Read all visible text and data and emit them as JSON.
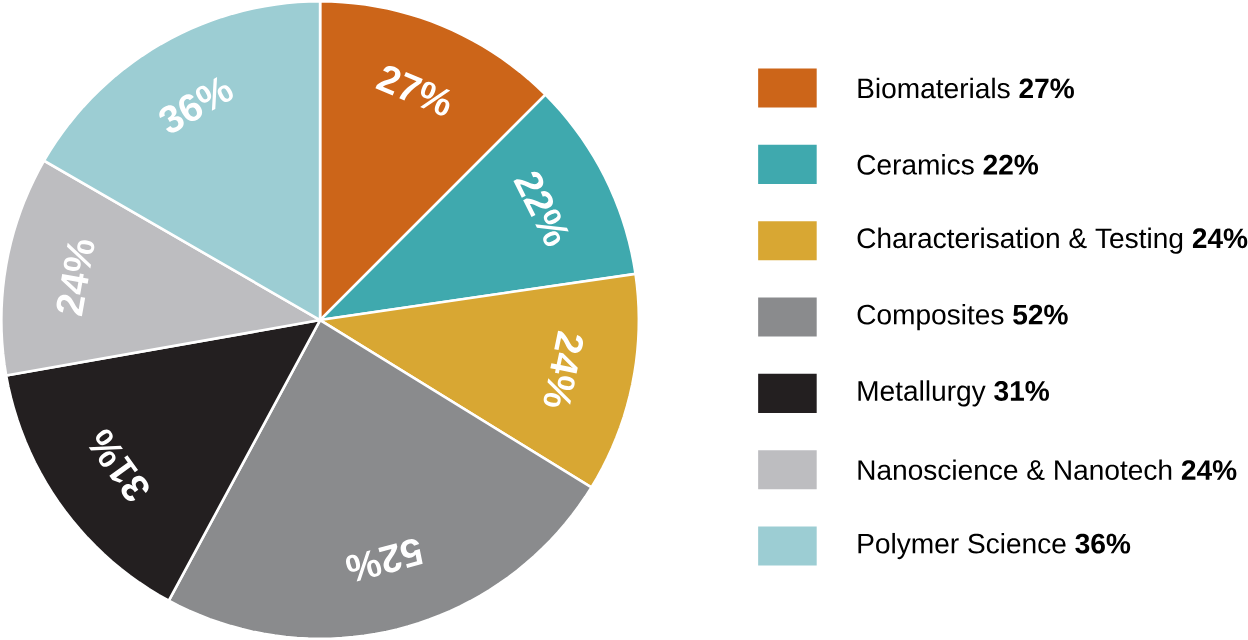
{
  "chart_data": {
    "type": "pie",
    "categories": [
      "Biomaterials **27%**",
      "Ceramics **22%**",
      "Characterisation & Testing **24%**",
      "Composites **52%**",
      "Metallurgy **31%**",
      "Nanoscience & Nanotech **24%**",
      "Polymer Science **36%**"
    ],
    "values": [
      27,
      22,
      24,
      52,
      31,
      24,
      36
    ],
    "value_labels": [
      "27%",
      "22%",
      "24%",
      "52%",
      "31%",
      "24%",
      "36%"
    ],
    "colors": [
      "#cc6519",
      "#3fa9ae",
      "#d8a733",
      "#8a8b8d",
      "#231f20",
      "#bdbdc0",
      "#9ccdd3"
    ],
    "legend": "right"
  }
}
